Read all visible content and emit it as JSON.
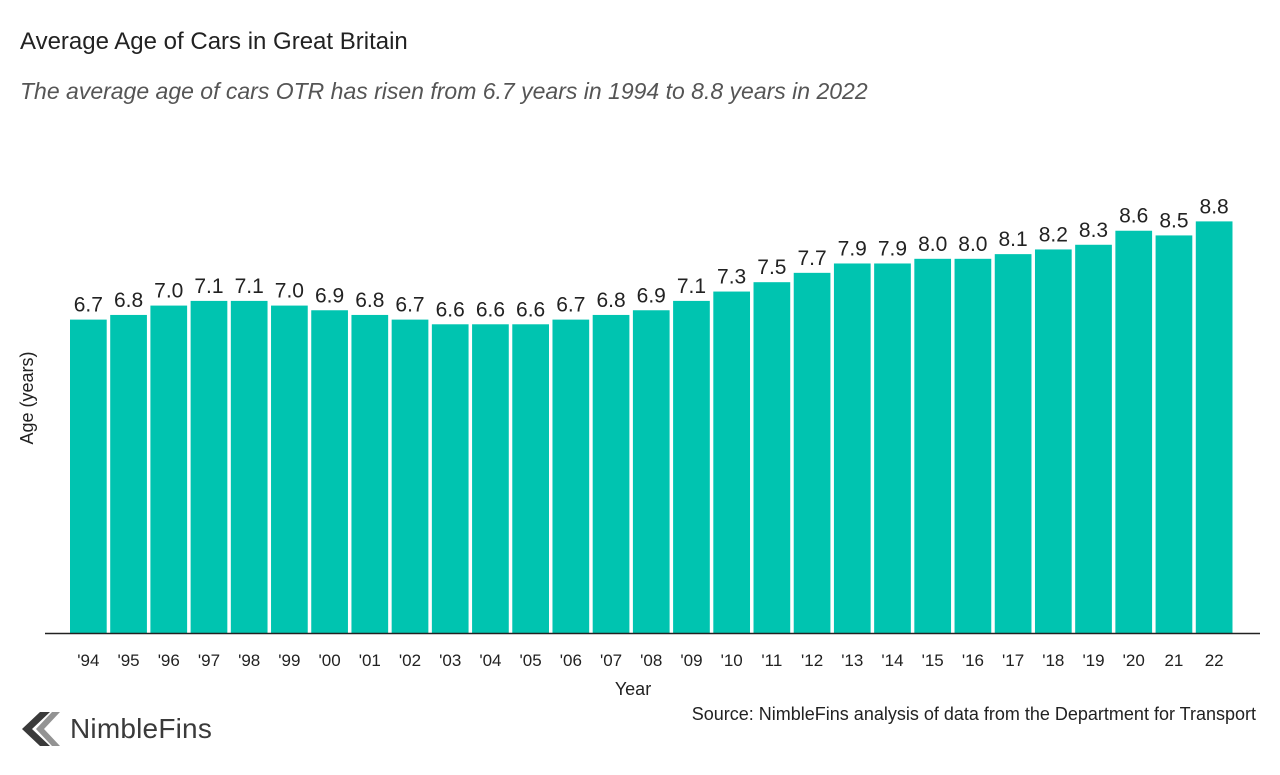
{
  "title": "Average Age of Cars in Great Britain",
  "subtitle": "The average age of cars OTR has risen from 6.7 years in 1994 to 8.8 years in 2022",
  "source": "Source: NimbleFins analysis of data from the Department for Transport",
  "logo_text": "NimbleFins",
  "colors": {
    "bar": "#00c4b0",
    "axis": "#222222",
    "text": "#222222"
  },
  "chart_data": {
    "type": "bar",
    "title": "Average Age of Cars in Great Britain",
    "xlabel": "Year",
    "ylabel": "Age (years)",
    "ylim": [
      0,
      9.3
    ],
    "grid": false,
    "categories": [
      "'94",
      "'95",
      "'96",
      "'97",
      "'98",
      "'99",
      "'00",
      "'01",
      "'02",
      "'03",
      "'04",
      "'05",
      "'06",
      "'07",
      "'08",
      "'09",
      "'10",
      "'11",
      "'12",
      "'13",
      "'14",
      "'15",
      "'16",
      "'17",
      "'18",
      "'19",
      "'20",
      "21",
      "22"
    ],
    "values": [
      6.7,
      6.8,
      7.0,
      7.1,
      7.1,
      7.0,
      6.9,
      6.8,
      6.7,
      6.6,
      6.6,
      6.6,
      6.7,
      6.8,
      6.9,
      7.1,
      7.3,
      7.5,
      7.7,
      7.9,
      7.9,
      8.0,
      8.0,
      8.1,
      8.2,
      8.3,
      8.6,
      8.5,
      8.8
    ],
    "labels": [
      "6.7",
      "6.8",
      "7.0",
      "7.1",
      "7.1",
      "7.0",
      "6.9",
      "6.8",
      "6.7",
      "6.6",
      "6.6",
      "6.6",
      "6.7",
      "6.8",
      "6.9",
      "7.1",
      "7.3",
      "7.5",
      "7.7",
      "7.9",
      "7.9",
      "8.0",
      "8.0",
      "8.1",
      "8.2",
      "8.3",
      "8.6",
      "8.5",
      "8.8"
    ]
  }
}
